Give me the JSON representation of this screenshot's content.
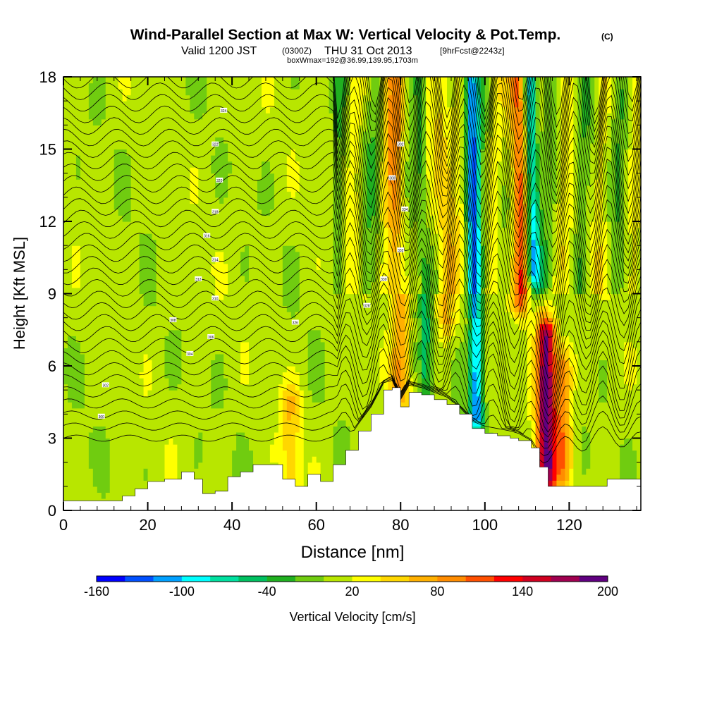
{
  "title": {
    "main": "Wind-Parallel Section at Max W: Vertical Velocity & Pot.Temp.",
    "copyright": "(C)",
    "valid_prefix": "Valid 1200 JST",
    "valid_utc": "(0300Z)",
    "valid_date": "THU 31 Oct 2013",
    "forecast": "[9hrFcst@2243z]",
    "box_info": "boxWmax=192@36.99,139.95,1703m"
  },
  "chart_data": {
    "type": "heatmap",
    "xlabel": "Distance [nm]",
    "ylabel": "Height [Kft MSL]",
    "xlim": [
      0,
      137
    ],
    "ylim": [
      0,
      18
    ],
    "x_ticks": [
      "0",
      "20",
      "40",
      "60",
      "80",
      "100",
      "120"
    ],
    "x_tick_values": [
      0,
      20,
      40,
      60,
      80,
      100,
      120
    ],
    "y_ticks": [
      "0",
      "3",
      "6",
      "9",
      "12",
      "15",
      "18"
    ],
    "y_tick_values": [
      0,
      3,
      6,
      9,
      12,
      15,
      18
    ],
    "colorbar": {
      "label": "Vertical Velocity [cm/s]",
      "min": -160,
      "max": 200,
      "step": 20,
      "tick_labels": [
        "-160",
        "-100",
        "-40",
        "20",
        "80",
        "140",
        "200"
      ],
      "tick_values": [
        -160,
        -100,
        -40,
        20,
        80,
        140,
        200
      ],
      "colors": [
        "#0000ff",
        "#0050ff",
        "#00a0ff",
        "#00ffff",
        "#00e0a0",
        "#00c060",
        "#20b020",
        "#70cc10",
        "#b8e600",
        "#ffff00",
        "#ffd700",
        "#ffb000",
        "#ff8c00",
        "#ff5000",
        "#ff0000",
        "#d00020",
        "#a00050",
        "#600080"
      ]
    },
    "terrain_kft": [
      [
        0,
        0.4
      ],
      [
        12,
        0.4
      ],
      [
        14,
        0.6
      ],
      [
        17,
        0.9
      ],
      [
        20,
        1.2
      ],
      [
        24,
        1.3
      ],
      [
        28,
        1.6
      ],
      [
        31,
        1.3
      ],
      [
        33,
        0.7
      ],
      [
        36,
        0.8
      ],
      [
        39,
        1.4
      ],
      [
        42,
        1.6
      ],
      [
        45,
        1.9
      ],
      [
        49,
        1.9
      ],
      [
        52,
        1.3
      ],
      [
        55,
        1.0
      ],
      [
        58,
        1.5
      ],
      [
        61,
        1.2
      ],
      [
        64,
        1.9
      ],
      [
        67,
        2.5
      ],
      [
        70,
        3.3
      ],
      [
        73,
        4.0
      ],
      [
        76,
        5.0
      ],
      [
        78,
        5.1
      ],
      [
        80,
        4.3
      ],
      [
        82,
        4.9
      ],
      [
        85,
        4.8
      ],
      [
        88,
        4.6
      ],
      [
        91,
        4.4
      ],
      [
        94,
        4.0
      ],
      [
        97,
        3.4
      ],
      [
        100,
        3.2
      ],
      [
        103,
        3.1
      ],
      [
        106,
        3.0
      ],
      [
        108,
        2.9
      ],
      [
        111,
        2.6
      ],
      [
        113,
        1.8
      ],
      [
        115,
        1.0
      ],
      [
        118,
        1.0
      ],
      [
        122,
        1.0
      ],
      [
        126,
        1.0
      ],
      [
        129,
        1.3
      ],
      [
        133,
        1.3
      ],
      [
        137,
        1.3
      ]
    ],
    "updraft_cores": [
      {
        "x": 114.5,
        "bottom": 1.5,
        "top": 7.2,
        "w_max": 192
      },
      {
        "x": 118.5,
        "bottom": 2.0,
        "top": 6.0,
        "w_max": 90
      },
      {
        "x": 109,
        "bottom": 9.0,
        "top": 18.0,
        "w_max": 120
      },
      {
        "x": 80,
        "bottom": 5.0,
        "top": 18.0,
        "w_max": 80
      },
      {
        "x": 91,
        "bottom": 8.0,
        "top": 18.0,
        "w_max": 70
      },
      {
        "x": 54,
        "bottom": 1.0,
        "top": 4.5,
        "w_max": 60
      }
    ],
    "downdraft_cores": [
      {
        "x": 98,
        "bottom": 4.0,
        "top": 18.0,
        "w_min": -110
      },
      {
        "x": 112,
        "bottom": 10.0,
        "top": 18.0,
        "w_min": -120
      },
      {
        "x": 86,
        "bottom": 4.5,
        "top": 18.0,
        "w_min": -40
      }
    ],
    "theta_contour_labels": [
      "300",
      "302",
      "304",
      "306",
      "308",
      "310",
      "312",
      "314",
      "316",
      "318",
      "320",
      "322",
      "324",
      "326",
      "328",
      "330",
      "332",
      "334"
    ]
  }
}
